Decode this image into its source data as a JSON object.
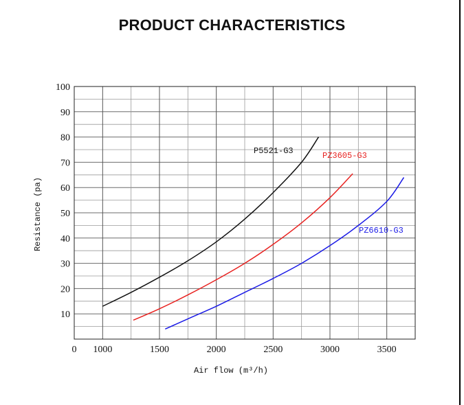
{
  "page": {
    "title": "PRODUCT CHARACTERISTICS"
  },
  "chart_data": {
    "type": "line",
    "xlabel": "Air flow (m³/h)",
    "ylabel": "Resistance (pa)",
    "xlim": [
      750,
      3750
    ],
    "ylim": [
      0,
      100
    ],
    "x_ticks": [
      "0",
      "1000",
      "1500",
      "2000",
      "2500",
      "3000",
      "3500"
    ],
    "y_ticks": [
      "10",
      "20",
      "30",
      "40",
      "50",
      "60",
      "70",
      "80",
      "90",
      "100"
    ],
    "grid": true,
    "series": [
      {
        "name": "P5521-G3",
        "color": "#111111",
        "x": [
          1000,
          1250,
          1500,
          1750,
          2000,
          2250,
          2500,
          2750,
          2900
        ],
        "y": [
          13,
          18.5,
          24.5,
          31,
          38.5,
          47.5,
          58,
          70,
          80
        ]
      },
      {
        "name": "PZ3605-G3",
        "color": "#e8211f",
        "x": [
          1270,
          1500,
          1750,
          2000,
          2250,
          2500,
          2750,
          3000,
          3200
        ],
        "y": [
          7.5,
          12,
          17.5,
          23.5,
          30,
          37.5,
          46,
          56,
          65.5
        ]
      },
      {
        "name": "PZ6610-G3",
        "color": "#1a1ae6",
        "x": [
          1550,
          1750,
          2000,
          2250,
          2500,
          2750,
          3000,
          3250,
          3500,
          3650
        ],
        "y": [
          4,
          8,
          13,
          18.5,
          24,
          30,
          37,
          45,
          54.5,
          64
        ]
      }
    ]
  }
}
